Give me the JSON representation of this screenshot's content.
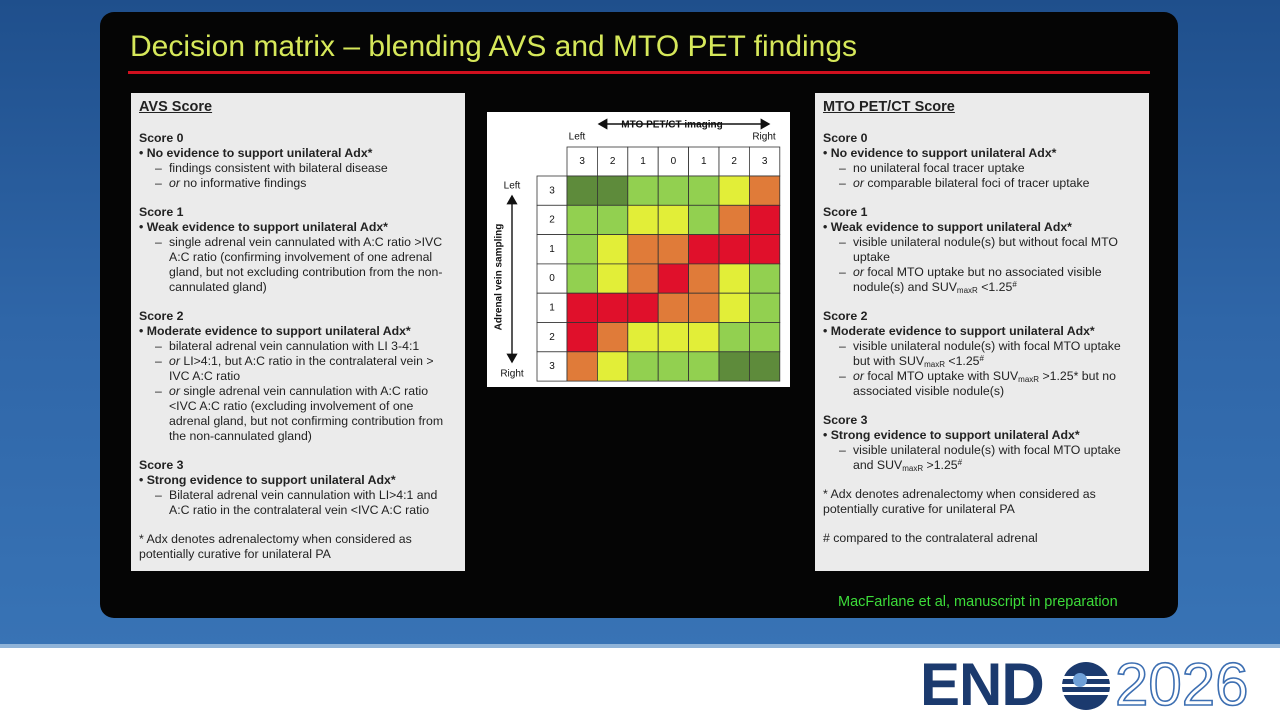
{
  "title": "Decision matrix – blending AVS and MTO PET findings",
  "avs": {
    "heading": "AVS Score",
    "scores": [
      {
        "label": "Score 0",
        "point": "No evidence to support unilateral Adx*",
        "items": [
          [
            "findings consistent with bilateral disease"
          ],
          [
            "or",
            " no informative findings"
          ]
        ]
      },
      {
        "label": "Score 1",
        "point": "Weak evidence to support unilateral Adx*",
        "items": [
          [
            "single adrenal vein cannulated with A:C ratio >IVC A:C ratio (confirming involvement of one adrenal gland, but not excluding contribution from the non-cannulated gland)"
          ]
        ]
      },
      {
        "label": "Score 2",
        "point": "Moderate evidence to support unilateral Adx*",
        "items": [
          [
            "bilateral adrenal vein cannulation with LI 3-4:1"
          ],
          [
            "or",
            " LI>4:1, but A:C ratio in the contralateral vein > IVC A:C ratio"
          ],
          [
            "or",
            " single adrenal vein cannulation with A:C ratio <IVC A:C ratio (excluding involvement of one adrenal gland, but not confirming contribution from the non-cannulated gland)"
          ]
        ]
      },
      {
        "label": "Score 3",
        "point": "Strong evidence to support unilateral Adx*",
        "items": [
          [
            "Bilateral adrenal vein cannulation with LI>4:1 and A:C ratio in the contralateral vein <IVC A:C ratio"
          ]
        ]
      }
    ],
    "footnotes": [
      "* Adx denotes adrenalectomy when considered as potentially curative for unilateral PA"
    ]
  },
  "matrix": {
    "top_title": "MTO PET/CT imaging",
    "top_left": "Left",
    "top_right": "Right",
    "col_labels": [
      "3",
      "2",
      "1",
      "0",
      "1",
      "2",
      "3"
    ],
    "side_title": "Adrenal vein sampling",
    "side_top": "Left",
    "side_bottom": "Right",
    "row_labels": [
      "3",
      "2",
      "1",
      "0",
      "1",
      "2",
      "3"
    ],
    "cells": [
      [
        "#5e8b3b",
        "#5e8b3b",
        "#92d050",
        "#92d050",
        "#92d050",
        "#e2ee38",
        "#e07b39"
      ],
      [
        "#92d050",
        "#92d050",
        "#e2ee38",
        "#e2ee38",
        "#92d050",
        "#e07b39",
        "#e0102b"
      ],
      [
        "#92d050",
        "#e2ee38",
        "#e07b39",
        "#e07b39",
        "#e0102b",
        "#e0102b",
        "#e0102b"
      ],
      [
        "#92d050",
        "#e2ee38",
        "#e07b39",
        "#e0102b",
        "#e07b39",
        "#e2ee38",
        "#92d050"
      ],
      [
        "#e0102b",
        "#e0102b",
        "#e0102b",
        "#e07b39",
        "#e07b39",
        "#e2ee38",
        "#92d050"
      ],
      [
        "#e0102b",
        "#e07b39",
        "#e2ee38",
        "#e2ee38",
        "#e2ee38",
        "#92d050",
        "#92d050"
      ],
      [
        "#e07b39",
        "#e2ee38",
        "#92d050",
        "#92d050",
        "#92d050",
        "#5e8b3b",
        "#5e8b3b"
      ]
    ]
  },
  "mto": {
    "heading": "MTO PET/CT Score",
    "scores": [
      {
        "label": "Score 0",
        "point": "No evidence to support unilateral Adx*",
        "items": [
          [
            "no unilateral focal tracer uptake"
          ],
          [
            "or",
            " comparable bilateral foci of tracer uptake"
          ]
        ]
      },
      {
        "label": "Score 1",
        "point": "Weak evidence to support unilateral Adx*",
        "items": [
          [
            "visible unilateral nodule(s) but without focal MTO uptake"
          ],
          [
            "or",
            " focal MTO uptake but no associated visible nodule(s) and SUV",
            "maxR",
            " <1.25",
            "#"
          ]
        ]
      },
      {
        "label": "Score 2",
        "point": "Moderate evidence to support unilateral Adx*",
        "items": [
          [
            "visible unilateral nodule(s) with focal MTO uptake but with SUV",
            "maxR",
            " <1.25",
            "#"
          ],
          [
            "or",
            " focal MTO uptake with SUV",
            "maxR",
            " >1.25* but no associated visible nodule(s)"
          ]
        ]
      },
      {
        "label": "Score 3",
        "point": "Strong evidence to support unilateral Adx*",
        "items": [
          [
            "visible unilateral nodule(s) with focal MTO uptake and SUV",
            "maxR",
            " >1.25",
            "#"
          ]
        ]
      }
    ],
    "footnotes": [
      "* Adx denotes adrenalectomy when considered as potentially curative for unilateral PA",
      "# compared to the contralateral adrenal"
    ]
  },
  "citation": "MacFarlane et al, manuscript in preparation",
  "logo": {
    "left": "END",
    "right": "2026"
  }
}
